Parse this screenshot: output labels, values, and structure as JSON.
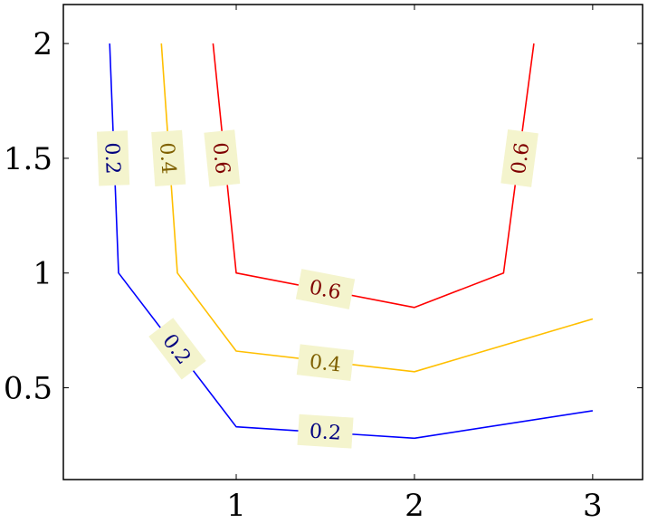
{
  "chart_data": {
    "type": "line",
    "title": "",
    "xlabel": "",
    "ylabel": "",
    "xlim": [
      0.03,
      3.28
    ],
    "ylim": [
      0.1,
      2.17
    ],
    "x_ticks": [
      {
        "value": 1,
        "label": "1"
      },
      {
        "value": 2,
        "label": "2"
      },
      {
        "value": 3,
        "label": "3"
      }
    ],
    "y_ticks": [
      {
        "value": 0.5,
        "label": "0.5"
      },
      {
        "value": 1,
        "label": "1"
      },
      {
        "value": 1.5,
        "label": "1.5"
      },
      {
        "value": 2,
        "label": "2"
      }
    ],
    "grid": false,
    "legend": "none",
    "series": [
      {
        "level": "0.2",
        "color": "#0000ff",
        "text_color": "#00007f",
        "points": [
          [
            0.29,
            2.0
          ],
          [
            0.34,
            1.0
          ],
          [
            1.0,
            0.33
          ],
          [
            2.0,
            0.28
          ],
          [
            3.0,
            0.4
          ]
        ],
        "labels": [
          {
            "text": "0.2",
            "x": 0.31,
            "y": 1.5
          },
          {
            "text": "0.2",
            "x": 0.67,
            "y": 0.67
          },
          {
            "text": "0.2",
            "x": 1.5,
            "y": 0.31
          }
        ]
      },
      {
        "level": "0.4",
        "color": "#ffbf00",
        "text_color": "#7f6000",
        "points": [
          [
            0.58,
            2.0
          ],
          [
            0.67,
            1.0
          ],
          [
            1.0,
            0.66
          ],
          [
            2.0,
            0.57
          ],
          [
            3.0,
            0.8
          ]
        ],
        "labels": [
          {
            "text": "0.4",
            "x": 0.62,
            "y": 1.5
          },
          {
            "text": "0.4",
            "x": 1.5,
            "y": 0.61
          }
        ]
      },
      {
        "level": "0.6",
        "color": "#ff0000",
        "text_color": "#7f0000",
        "points": [
          [
            0.87,
            2.0
          ],
          [
            1.0,
            1.0
          ],
          [
            2.0,
            0.85
          ],
          [
            2.5,
            1.0
          ],
          [
            2.67,
            2.0
          ]
        ],
        "labels": [
          {
            "text": "0.6",
            "x": 0.92,
            "y": 1.5
          },
          {
            "text": "0.6",
            "x": 1.5,
            "y": 0.93
          },
          {
            "text": "0.6",
            "x": 2.59,
            "y": 1.5
          }
        ]
      }
    ]
  }
}
